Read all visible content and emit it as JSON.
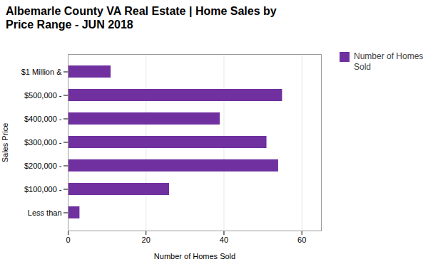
{
  "chart_data": {
    "type": "bar",
    "orientation": "horizontal",
    "title": "Albemarle County VA Real Estate | Home Sales by\nPrice Range - JUN 2018",
    "categories": [
      "Less than",
      "$100,000 -",
      "$200,000 -",
      "$300,000 -",
      "$400,000 -",
      "$500,000 -",
      "$1 Million &"
    ],
    "series": [
      {
        "name": "Number of Homes\nSold",
        "color": "#7030A0",
        "values": [
          3,
          26,
          54,
          51,
          39,
          55,
          11
        ]
      }
    ],
    "xlabel": "Number of Homes Sold",
    "ylabel": "Sales Price",
    "xlim": [
      0,
      65
    ],
    "xticks": [
      0,
      20,
      40,
      60
    ],
    "grid": true,
    "legend": "right"
  }
}
